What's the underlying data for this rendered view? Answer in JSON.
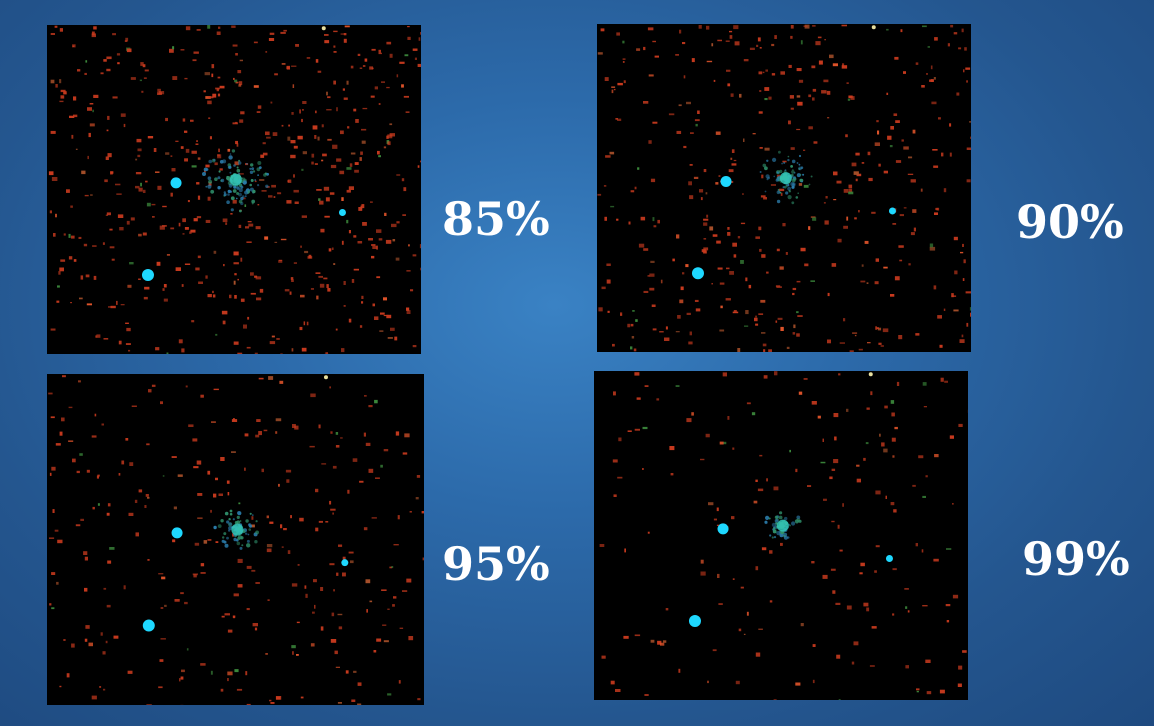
{
  "panels": [
    {
      "id": "p85",
      "label": "85%",
      "noise_density": 0.85
    },
    {
      "id": "p90",
      "label": "90%",
      "noise_density": 0.9
    },
    {
      "id": "p95",
      "label": "95%",
      "noise_density": 0.95
    },
    {
      "id": "p99",
      "label": "99%",
      "noise_density": 0.99
    }
  ],
  "colors": {
    "background": "#2c6aaa",
    "noise_red": "#c83a1e",
    "star_cyan": "#1ed8ff",
    "galaxy_core": "#34c8b8"
  }
}
